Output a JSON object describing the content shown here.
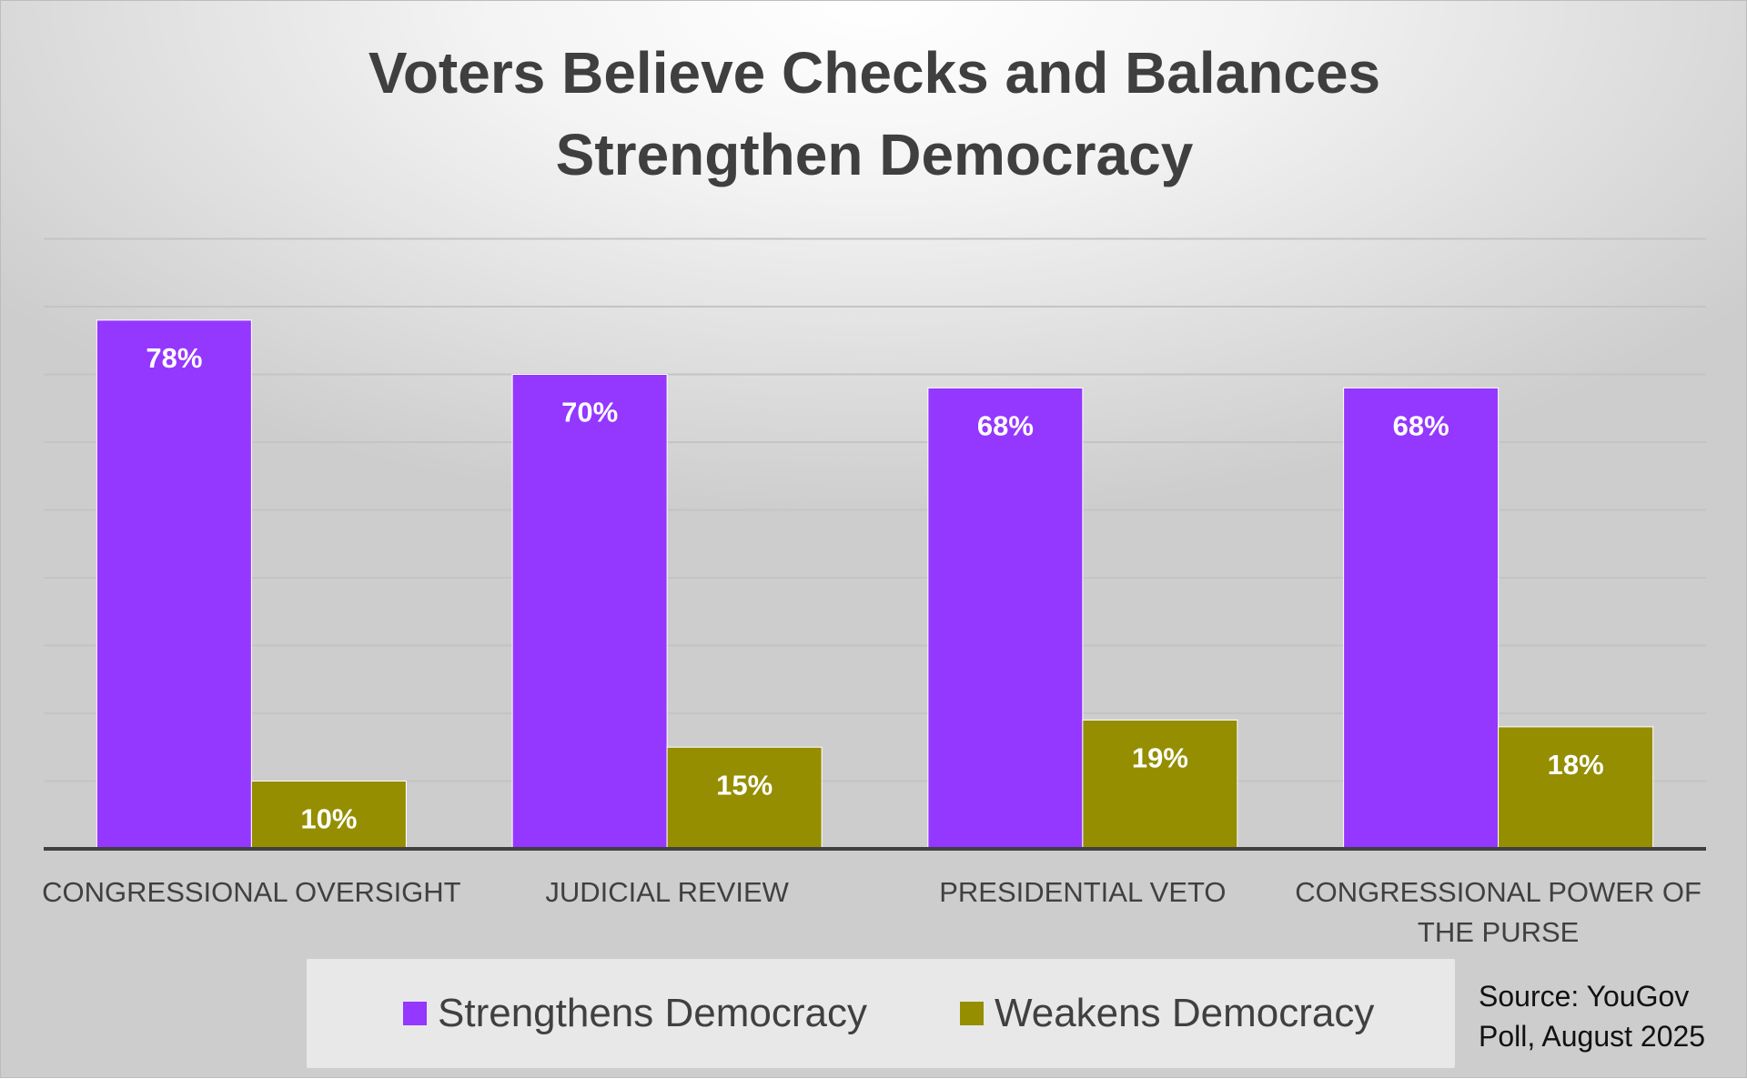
{
  "colors": {
    "strengthens": "#9437ff",
    "weakens": "#948e00",
    "gridline": "#c4c4c4",
    "axis": "#404040",
    "data_label": "#ffffff",
    "category_label": "#404040"
  },
  "title_lines": [
    "Voters Believe Checks and Balances",
    "Strengthen Democracy"
  ],
  "source_lines": [
    "Source: YouGov",
    "Poll, August 2025"
  ],
  "chart_data": {
    "type": "bar",
    "title": "Voters Believe Checks and Balances Strengthen Democracy",
    "categories": [
      [
        "CONGRESSIONAL OVERSIGHT"
      ],
      [
        "JUDICIAL REVIEW"
      ],
      [
        "PRESIDENTIAL VETO"
      ],
      [
        "CONGRESSIONAL POWER OF",
        "THE PURSE"
      ]
    ],
    "series": [
      {
        "name": "Strengthens Democracy",
        "values": [
          78,
          70,
          68,
          68
        ],
        "labels": [
          "78%",
          "70%",
          "68%",
          "68%"
        ],
        "color": "#9437ff"
      },
      {
        "name": "Weakens Democracy",
        "values": [
          10,
          15,
          19,
          18
        ],
        "labels": [
          "10%",
          "15%",
          "19%",
          "18%"
        ],
        "color": "#948e00"
      }
    ],
    "ylim": [
      0,
      90
    ],
    "grid": true,
    "gridline_step": 10,
    "y_axis_visible": false,
    "legend_position": "bottom",
    "data_labels": "inside-top",
    "xlabel": "",
    "ylabel": ""
  }
}
